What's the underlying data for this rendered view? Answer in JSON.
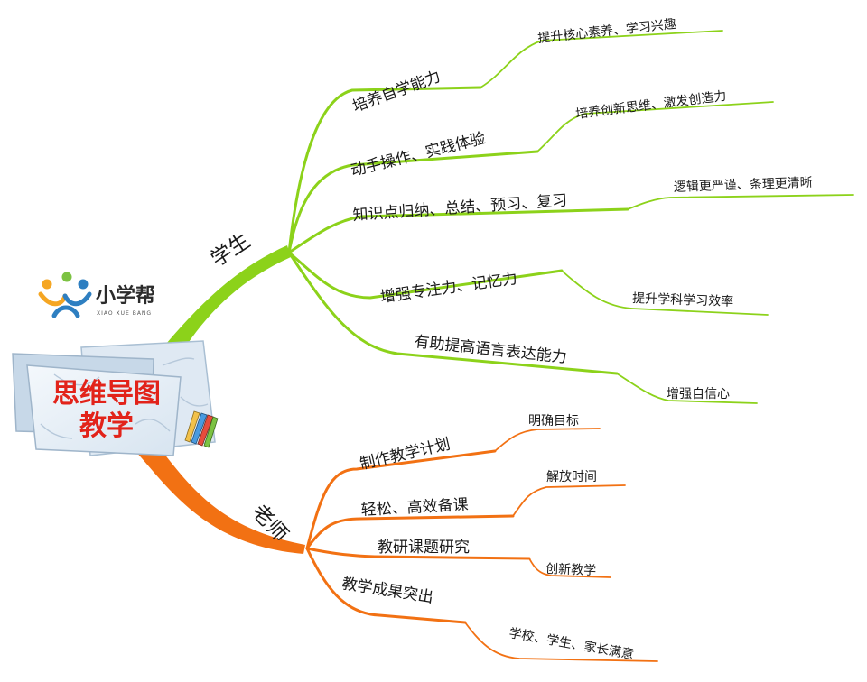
{
  "logo": {
    "name": "小学帮",
    "subtitle": "XIAO XUE BANG",
    "colors": {
      "orange": "#f5a623",
      "green": "#7cc242",
      "blue": "#2e7fc1"
    }
  },
  "center": {
    "line1": "思维导图",
    "line2": "教学",
    "text_color": "#e2231a"
  },
  "colors": {
    "student": "#8cd21a",
    "teacher": "#f27113"
  },
  "student": {
    "label": "学生",
    "items": [
      {
        "label": "培养自学能力",
        "detail": "提升核心素养、学习兴趣"
      },
      {
        "label": "动手操作、实践体验",
        "detail": "培养创新思维、激发创造力"
      },
      {
        "label": "知识点归纳、总结、预习、复习",
        "detail": "逻辑更严谨、条理更清晰"
      },
      {
        "label": "增强专注力、记忆力",
        "detail": "提升学科学习效率"
      },
      {
        "label": "有助提高语言表达能力",
        "detail": "增强自信心"
      }
    ]
  },
  "teacher": {
    "label": "老师",
    "items": [
      {
        "label": "制作教学计划",
        "detail": "明确目标"
      },
      {
        "label": "轻松、高效备课",
        "detail": "解放时间"
      },
      {
        "label": "教研课题研究",
        "detail": "创新教学"
      },
      {
        "label": "教学成果突出",
        "detail": "学校、学生、家长满意"
      }
    ]
  }
}
